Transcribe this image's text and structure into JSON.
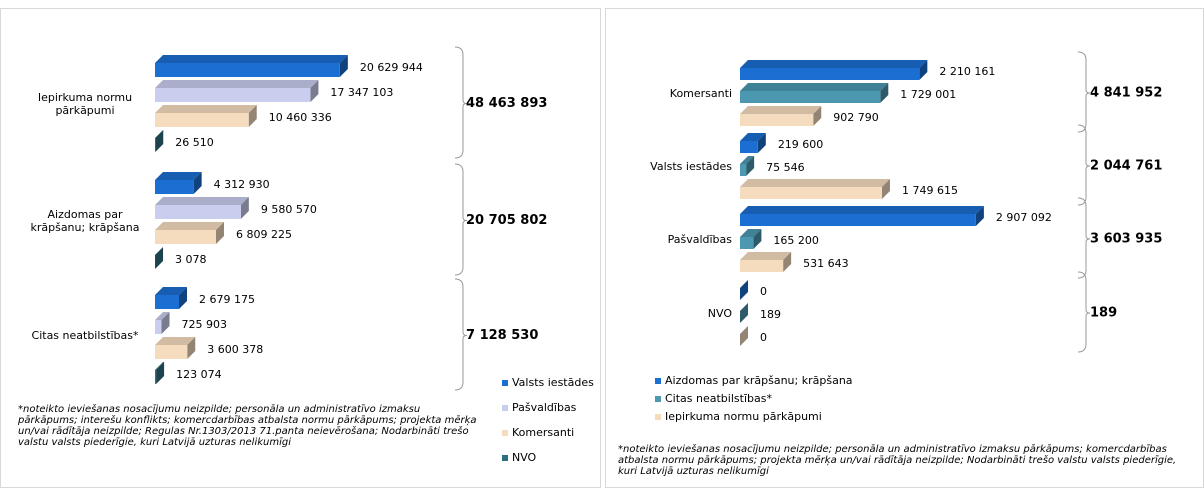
{
  "chart_data": [
    {
      "type": "bar3d-horizontal",
      "categories": [
        "Iepirkuma normu pārkāpumi",
        "Aizdomas par krāpšanu; krāpšana",
        "Citas neatbilstības*"
      ],
      "xlim": [
        0,
        25000000
      ],
      "series": [
        {
          "name": "Valsts iestādes",
          "color": "#1b6fd2",
          "values": [
            20629944,
            4312930,
            2679175
          ],
          "value_labels": [
            "20 629 944",
            "4 312 930",
            "2 679 175"
          ]
        },
        {
          "name": "Pašvaldības",
          "color": "#c9cdee",
          "values": [
            17347103,
            9580570,
            725903
          ],
          "value_labels": [
            "17 347 103",
            "9 580 570",
            "725 903"
          ]
        },
        {
          "name": "Komersanti",
          "color": "#f6dcbf",
          "values": [
            10460336,
            6809225,
            3600378
          ],
          "value_labels": [
            "10 460 336",
            "6 809 225",
            "3 600 378"
          ]
        },
        {
          "name": "NVO",
          "color": "#2f6f82",
          "values": [
            26510,
            3078,
            123074
          ],
          "value_labels": [
            "26 510",
            "3 078",
            "123 074"
          ]
        }
      ],
      "totals": [
        48463893,
        20705802,
        7128530
      ],
      "total_labels": [
        "48 463 893",
        "20 705 802",
        "7 128 530"
      ],
      "footnote": "*noteikto ieviešanas nosacījumu neizpilde; personāla un administratīvo izmaksu pārkāpums; interešu konflikts; komercdarbības atbalsta normu pārkāpums; projekta mērķa un/vai rādītāja neizpilde; Regulas Nr.1303/2013 71.panta neievērošana; Nodarbināti trešo valstu valsts piederīgie, kuri Latvijā uzturas nelikumīgi"
    },
    {
      "type": "bar3d-horizontal",
      "categories": [
        "Komersanti",
        "Valsts iestādes",
        "Pašvaldības",
        "NVO"
      ],
      "xlim": [
        0,
        3500000
      ],
      "series": [
        {
          "name": "Aizdomas par krāpšanu; krāpšana",
          "color": "#1b6fd2",
          "values": [
            2210161,
            219600,
            2907092,
            0
          ],
          "value_labels": [
            "2 210 161",
            "219 600",
            "2 907 092",
            "0"
          ]
        },
        {
          "name": "Citas neatbilstības*",
          "color": "#4b98b0",
          "values": [
            1729001,
            75546,
            165200,
            189
          ],
          "value_labels": [
            "1 729 001",
            "75 546",
            "165 200",
            "189"
          ]
        },
        {
          "name": "Iepirkuma normu pārkāpumi",
          "color": "#f6dcbf",
          "values": [
            902790,
            1749615,
            531643,
            0
          ],
          "value_labels": [
            "902 790",
            "1 749 615",
            "531 643",
            "0"
          ]
        }
      ],
      "totals": [
        4841952,
        2044761,
        3603935,
        189
      ],
      "total_labels": [
        "4 841 952",
        "2 044 761",
        "3 603 935",
        "189"
      ],
      "footnote": "*noteikto ieviešanas nosacījumu neizpilde; personāla un administratīvo izmaksu pārkāpums; komercdarbības atbalsta normu pārkāpums; projekta mērķa un/vai rādītāja neizpilde; Nodarbināti trešo valstu valsts piederīgie, kuri Latvijā uzturas nelikumīgi"
    }
  ]
}
